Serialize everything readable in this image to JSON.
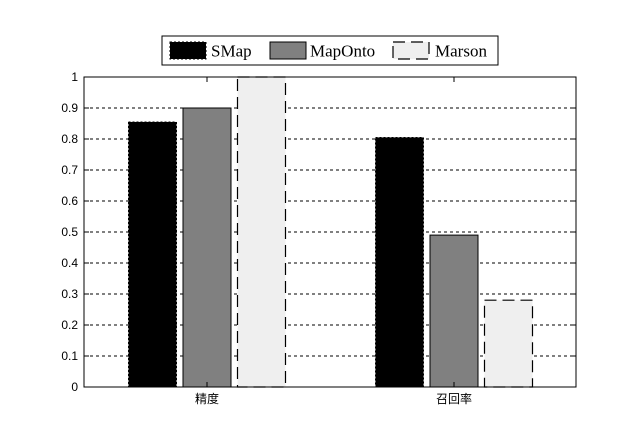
{
  "chart_data": {
    "type": "bar",
    "categories": [
      "精度",
      "召回率"
    ],
    "series": [
      {
        "name": "SMap",
        "values": [
          0.855,
          0.805
        ],
        "color": "#000000",
        "style": "solid-dotted-border"
      },
      {
        "name": "MapOnto",
        "values": [
          0.9,
          0.49
        ],
        "color": "#808080",
        "style": "solid"
      },
      {
        "name": "Marson",
        "values": [
          1.0,
          0.28
        ],
        "color": "#efefef",
        "style": "dashed-border"
      }
    ],
    "ylim": [
      0,
      1
    ],
    "yticks": [
      "0",
      "0.1",
      "0.2",
      "0.3",
      "0.4",
      "0.5",
      "0.6",
      "0.7",
      "0.8",
      "0.9",
      "1"
    ],
    "grid": "horizontal-dashed",
    "legend_position": "top-center"
  }
}
